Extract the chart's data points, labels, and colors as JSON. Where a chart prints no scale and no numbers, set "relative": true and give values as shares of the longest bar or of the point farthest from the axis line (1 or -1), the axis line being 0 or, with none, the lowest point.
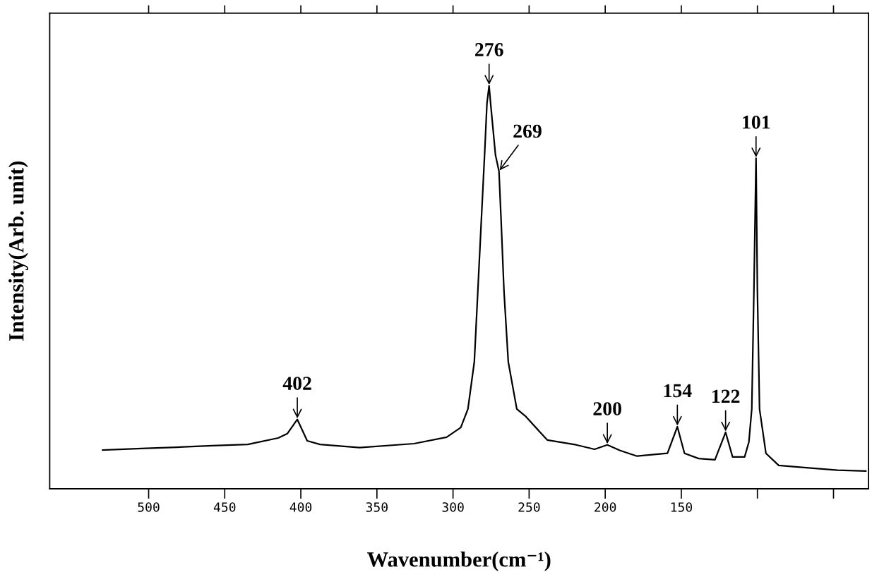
{
  "chart_data": {
    "type": "line",
    "relative": true,
    "xlabel": "Wavenumber(cm⁻¹)",
    "ylabel": "Intensity(Arb. unit)",
    "xlim": [
      565,
      27
    ],
    "xticks": [
      500,
      450,
      400,
      350,
      300,
      250,
      200,
      150,
      {
        "value": 100,
        "label": null
      },
      {
        "value": 50,
        "label": null
      }
    ],
    "tick_labels": "x",
    "grid": false,
    "series": [
      {
        "color": "#000000",
        "x": [
          530.2,
          504.7,
          481.4,
          458.1,
          434.9,
          414.9,
          408.8,
          402.3,
          395.8,
          387.4,
          361.4,
          325.6,
          304.2,
          294.9,
          290.2,
          286.0,
          283.7,
          281.4,
          279.1,
          277.7,
          276.3,
          275.3,
          272.1,
          269.8,
          268.4,
          266.5,
          263.7,
          258.1,
          252.1,
          238.1,
          219.1,
          207.0,
          198.6,
          190.2,
          179.1,
          159.1,
          152.6,
          147.9,
          138.6,
          127.9,
          120.9,
          116.3,
          108.4,
          105.6,
          103.7,
          102.3,
          100.9,
          100.0,
          98.6,
          94.4,
          86.0,
          70.7,
          47.4,
          28.8
        ],
        "values": [
          0.096,
          0.1,
          0.103,
          0.107,
          0.11,
          0.126,
          0.137,
          0.172,
          0.119,
          0.11,
          0.102,
          0.112,
          0.128,
          0.152,
          0.198,
          0.315,
          0.49,
          0.666,
          0.841,
          0.956,
          1.0,
          0.956,
          0.828,
          0.788,
          0.666,
          0.49,
          0.315,
          0.198,
          0.179,
          0.121,
          0.109,
          0.098,
          0.109,
          0.095,
          0.081,
          0.088,
          0.154,
          0.088,
          0.075,
          0.072,
          0.14,
          0.079,
          0.079,
          0.116,
          0.198,
          0.49,
          0.82,
          0.49,
          0.198,
          0.088,
          0.058,
          0.053,
          0.046,
          0.044
        ]
      }
    ],
    "annotations": [
      {
        "text": "402",
        "x": 402.3,
        "y": 0.172
      },
      {
        "text": "276",
        "x": 276.3,
        "y": 1.0
      },
      {
        "text": "269",
        "x": 269.8,
        "y": 0.788
      },
      {
        "text": "200",
        "x": 198.6,
        "y": 0.109
      },
      {
        "text": "154",
        "x": 152.6,
        "y": 0.154
      },
      {
        "text": "122",
        "x": 120.9,
        "y": 0.14
      },
      {
        "text": "101",
        "x": 100.9,
        "y": 0.82
      }
    ]
  }
}
